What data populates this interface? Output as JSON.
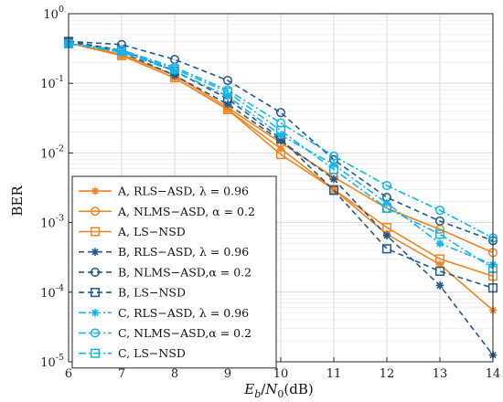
{
  "chart_data": {
    "type": "line",
    "xlabel": "E_b/N_0(dB)",
    "xlabel_parts": {
      "e": "E",
      "b": "b",
      "slash": "/",
      "n": "N",
      "zero": "0",
      "unit": "(dB)"
    },
    "ylabel": "BER",
    "xlim": [
      6,
      14
    ],
    "ylim": [
      1e-05,
      1
    ],
    "yscale": "log",
    "grid": true,
    "legend_position": "bottom-left",
    "x_ticks": [
      "6",
      "7",
      "8",
      "9",
      "10",
      "11",
      "12",
      "13",
      "14"
    ],
    "y_ticks": [
      {
        "base": "10",
        "exp": "0"
      },
      {
        "base": "10",
        "exp": "-1"
      },
      {
        "base": "10",
        "exp": "-2"
      },
      {
        "base": "10",
        "exp": "-3"
      },
      {
        "base": "10",
        "exp": "-4"
      },
      {
        "base": "10",
        "exp": "-5"
      }
    ],
    "x": [
      6,
      7,
      8,
      9,
      10,
      11,
      12,
      13,
      14
    ],
    "series": [
      {
        "name": "A, RLS−ASD, λ = 0.96",
        "color": "#F28522",
        "dash": "solid",
        "marker": "star",
        "values": [
          0.38,
          0.25,
          0.12,
          0.042,
          0.0115,
          0.003,
          0.00068,
          0.00025,
          5.5e-05
        ]
      },
      {
        "name": "A, NLMS−ASD, α = 0.2",
        "color": "#F28522",
        "dash": "solid",
        "marker": "circle",
        "values": [
          0.38,
          0.26,
          0.13,
          0.045,
          0.014,
          0.0045,
          0.0016,
          0.0008,
          0.00037
        ]
      },
      {
        "name": "A, LS−NSD",
        "color": "#F28522",
        "dash": "solid",
        "marker": "square",
        "values": [
          0.38,
          0.25,
          0.12,
          0.042,
          0.0095,
          0.003,
          0.00085,
          0.0003,
          0.00017
        ]
      },
      {
        "name": "B, RLS−ASD, λ = 0.96",
        "color": "#23598C",
        "dash": "dashed",
        "marker": "star",
        "values": [
          0.4,
          0.28,
          0.13,
          0.05,
          0.015,
          0.0042,
          0.00065,
          0.000125,
          1.25e-05
        ]
      },
      {
        "name": "B, NLMS−ASD,α = 0.2",
        "color": "#23598C",
        "dash": "dashed",
        "marker": "circle",
        "values": [
          0.4,
          0.36,
          0.22,
          0.11,
          0.038,
          0.008,
          0.0023,
          0.00105,
          0.00055
        ]
      },
      {
        "name": "B, LS−NSD",
        "color": "#23598C",
        "dash": "dashed",
        "marker": "square",
        "values": [
          0.4,
          0.3,
          0.15,
          0.06,
          0.016,
          0.0029,
          0.00042,
          0.0002,
          0.000115
        ]
      },
      {
        "name": "C, RLS−ASD, λ = 0.96",
        "color": "#15B4E5",
        "dash": "dashdot",
        "marker": "star",
        "values": [
          0.37,
          0.28,
          0.15,
          0.065,
          0.018,
          0.0068,
          0.0019,
          0.0005,
          0.00025
        ]
      },
      {
        "name": "C, NLMS−ASD,α = 0.2",
        "color": "#15B4E5",
        "dash": "dashdot",
        "marker": "circle",
        "values": [
          0.37,
          0.3,
          0.17,
          0.08,
          0.027,
          0.009,
          0.0034,
          0.0015,
          0.0006
        ]
      },
      {
        "name": "C, LS−NSD",
        "color": "#15B4E5",
        "dash": "dashdot",
        "marker": "square",
        "values": [
          0.37,
          0.29,
          0.16,
          0.075,
          0.021,
          0.0058,
          0.0016,
          0.00068,
          0.00022
        ]
      }
    ]
  }
}
